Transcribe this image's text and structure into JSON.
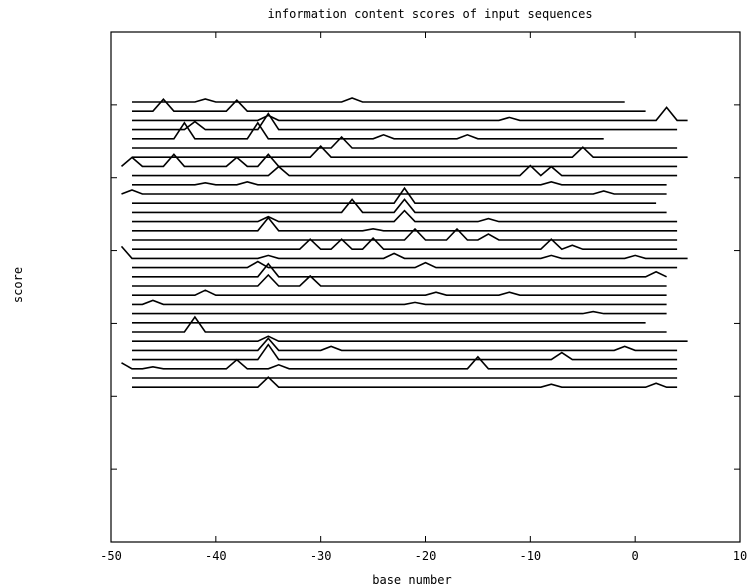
{
  "chart_data": {
    "type": "line",
    "title": "information content scores of input sequences",
    "xlabel": "base number",
    "ylabel": "score",
    "xlim": [
      -50,
      10
    ],
    "xticks": [
      -50,
      -40,
      -30,
      -20,
      -10,
      0,
      10
    ],
    "y_tick_count": 6,
    "grid": false,
    "stacked_offset_traces": true,
    "series": [
      {
        "x_start": -48,
        "x_end": -1,
        "peaks": [
          [
            -41,
            0.3
          ],
          [
            -27,
            0.4
          ]
        ]
      },
      {
        "x_start": -48,
        "x_end": 1,
        "peaks": [
          [
            -45,
            1.2
          ],
          [
            -38,
            1.1
          ]
        ]
      },
      {
        "x_start": -48,
        "x_end": 5,
        "peaks": [
          [
            -35,
            0.5
          ],
          [
            -12,
            0.3
          ],
          [
            3,
            1.3
          ]
        ]
      },
      {
        "x_start": -48,
        "x_end": 4,
        "peaks": [
          [
            -42,
            0.8
          ],
          [
            -35,
            1.6
          ]
        ]
      },
      {
        "x_start": -48,
        "x_end": -3,
        "peaks": [
          [
            -43,
            1.6
          ],
          [
            -36,
            1.6
          ],
          [
            -24,
            0.4
          ],
          [
            -16,
            0.4
          ]
        ]
      },
      {
        "x_start": -48,
        "x_end": 4,
        "peaks": [
          [
            -28,
            1.1
          ]
        ]
      },
      {
        "x_start": -48,
        "x_end": 5,
        "peaks": [
          [
            -30,
            1.1
          ],
          [
            -5,
            1.0
          ]
        ]
      },
      {
        "x_start": -49,
        "x_end": 4,
        "peaks": [
          [
            -48,
            0.9
          ],
          [
            -44,
            1.2
          ],
          [
            -38,
            0.9
          ],
          [
            -35,
            1.2
          ]
        ]
      },
      {
        "x_start": -48,
        "x_end": 4,
        "peaks": [
          [
            -34,
            0.9
          ],
          [
            -10,
            1.0
          ],
          [
            -8,
            0.9
          ]
        ]
      },
      {
        "x_start": -48,
        "x_end": 3,
        "peaks": [
          [
            -41,
            0.2
          ],
          [
            -37,
            0.3
          ],
          [
            -8,
            0.3
          ]
        ]
      },
      {
        "x_start": -49,
        "x_end": 3,
        "peaks": [
          [
            -48,
            0.4
          ],
          [
            -3,
            0.3
          ]
        ]
      },
      {
        "x_start": -48,
        "x_end": 2,
        "peaks": [
          [
            -22,
            1.5
          ]
        ]
      },
      {
        "x_start": -48,
        "x_end": 3,
        "peaks": [
          [
            -22,
            1.3
          ],
          [
            -27,
            1.3
          ]
        ]
      },
      {
        "x_start": -48,
        "x_end": 4,
        "peaks": [
          [
            -35,
            0.5
          ],
          [
            -22,
            1.1
          ],
          [
            -14,
            0.3
          ]
        ]
      },
      {
        "x_start": -48,
        "x_end": 4,
        "peaks": [
          [
            -35,
            1.3
          ],
          [
            -25,
            0.2
          ]
        ]
      },
      {
        "x_start": -48,
        "x_end": 4,
        "peaks": [
          [
            -21,
            1.1
          ],
          [
            -17,
            1.1
          ],
          [
            -14,
            0.6
          ]
        ]
      },
      {
        "x_start": -48,
        "x_end": 4,
        "peaks": [
          [
            -31,
            1.0
          ],
          [
            -28,
            1.0
          ],
          [
            -25,
            1.1
          ],
          [
            -8,
            1.0
          ],
          [
            -6,
            0.4
          ]
        ]
      },
      {
        "x_start": -49,
        "x_end": 5,
        "peaks": [
          [
            -49,
            1.2
          ],
          [
            -35,
            0.3
          ],
          [
            -23,
            0.5
          ],
          [
            -8,
            0.3
          ],
          [
            0,
            0.3
          ]
        ]
      },
      {
        "x_start": -48,
        "x_end": 4,
        "peaks": [
          [
            -36,
            0.6
          ],
          [
            -20,
            0.5
          ]
        ]
      },
      {
        "x_start": -48,
        "x_end": 3,
        "peaks": [
          [
            -35,
            1.3
          ],
          [
            2,
            0.5
          ]
        ]
      },
      {
        "x_start": -48,
        "x_end": 3,
        "peaks": [
          [
            -35,
            1.1
          ],
          [
            -31,
            1.0
          ]
        ]
      },
      {
        "x_start": -48,
        "x_end": 3,
        "peaks": [
          [
            -41,
            0.5
          ],
          [
            -19,
            0.3
          ],
          [
            -12,
            0.3
          ]
        ]
      },
      {
        "x_start": -48,
        "x_end": 3,
        "peaks": [
          [
            -46,
            0.4
          ],
          [
            -21,
            0.2
          ]
        ]
      },
      {
        "x_start": -48,
        "x_end": 3,
        "peaks": [
          [
            -4,
            0.2
          ]
        ]
      },
      {
        "x_start": -48,
        "x_end": 1,
        "peaks": []
      },
      {
        "x_start": -48,
        "x_end": 3,
        "peaks": [
          [
            -42,
            1.5
          ]
        ]
      },
      {
        "x_start": -48,
        "x_end": 5,
        "peaks": [
          [
            -35,
            0.5
          ]
        ]
      },
      {
        "x_start": -48,
        "x_end": 4,
        "peaks": [
          [
            -35,
            1.2
          ],
          [
            -29,
            0.4
          ],
          [
            -1,
            0.4
          ]
        ]
      },
      {
        "x_start": -48,
        "x_end": 4,
        "peaks": [
          [
            -35,
            1.5
          ],
          [
            -7,
            0.7
          ]
        ]
      },
      {
        "x_start": -49,
        "x_end": 4,
        "peaks": [
          [
            -49,
            0.6
          ],
          [
            -46,
            0.2
          ],
          [
            -38,
            0.9
          ],
          [
            -34,
            0.4
          ],
          [
            -15,
            1.2
          ]
        ]
      },
      {
        "x_start": -48,
        "x_end": 4,
        "peaks": []
      },
      {
        "x_start": -48,
        "x_end": 4,
        "peaks": [
          [
            -35,
            1.0
          ],
          [
            -8,
            0.3
          ],
          [
            2,
            0.4
          ]
        ]
      }
    ]
  }
}
